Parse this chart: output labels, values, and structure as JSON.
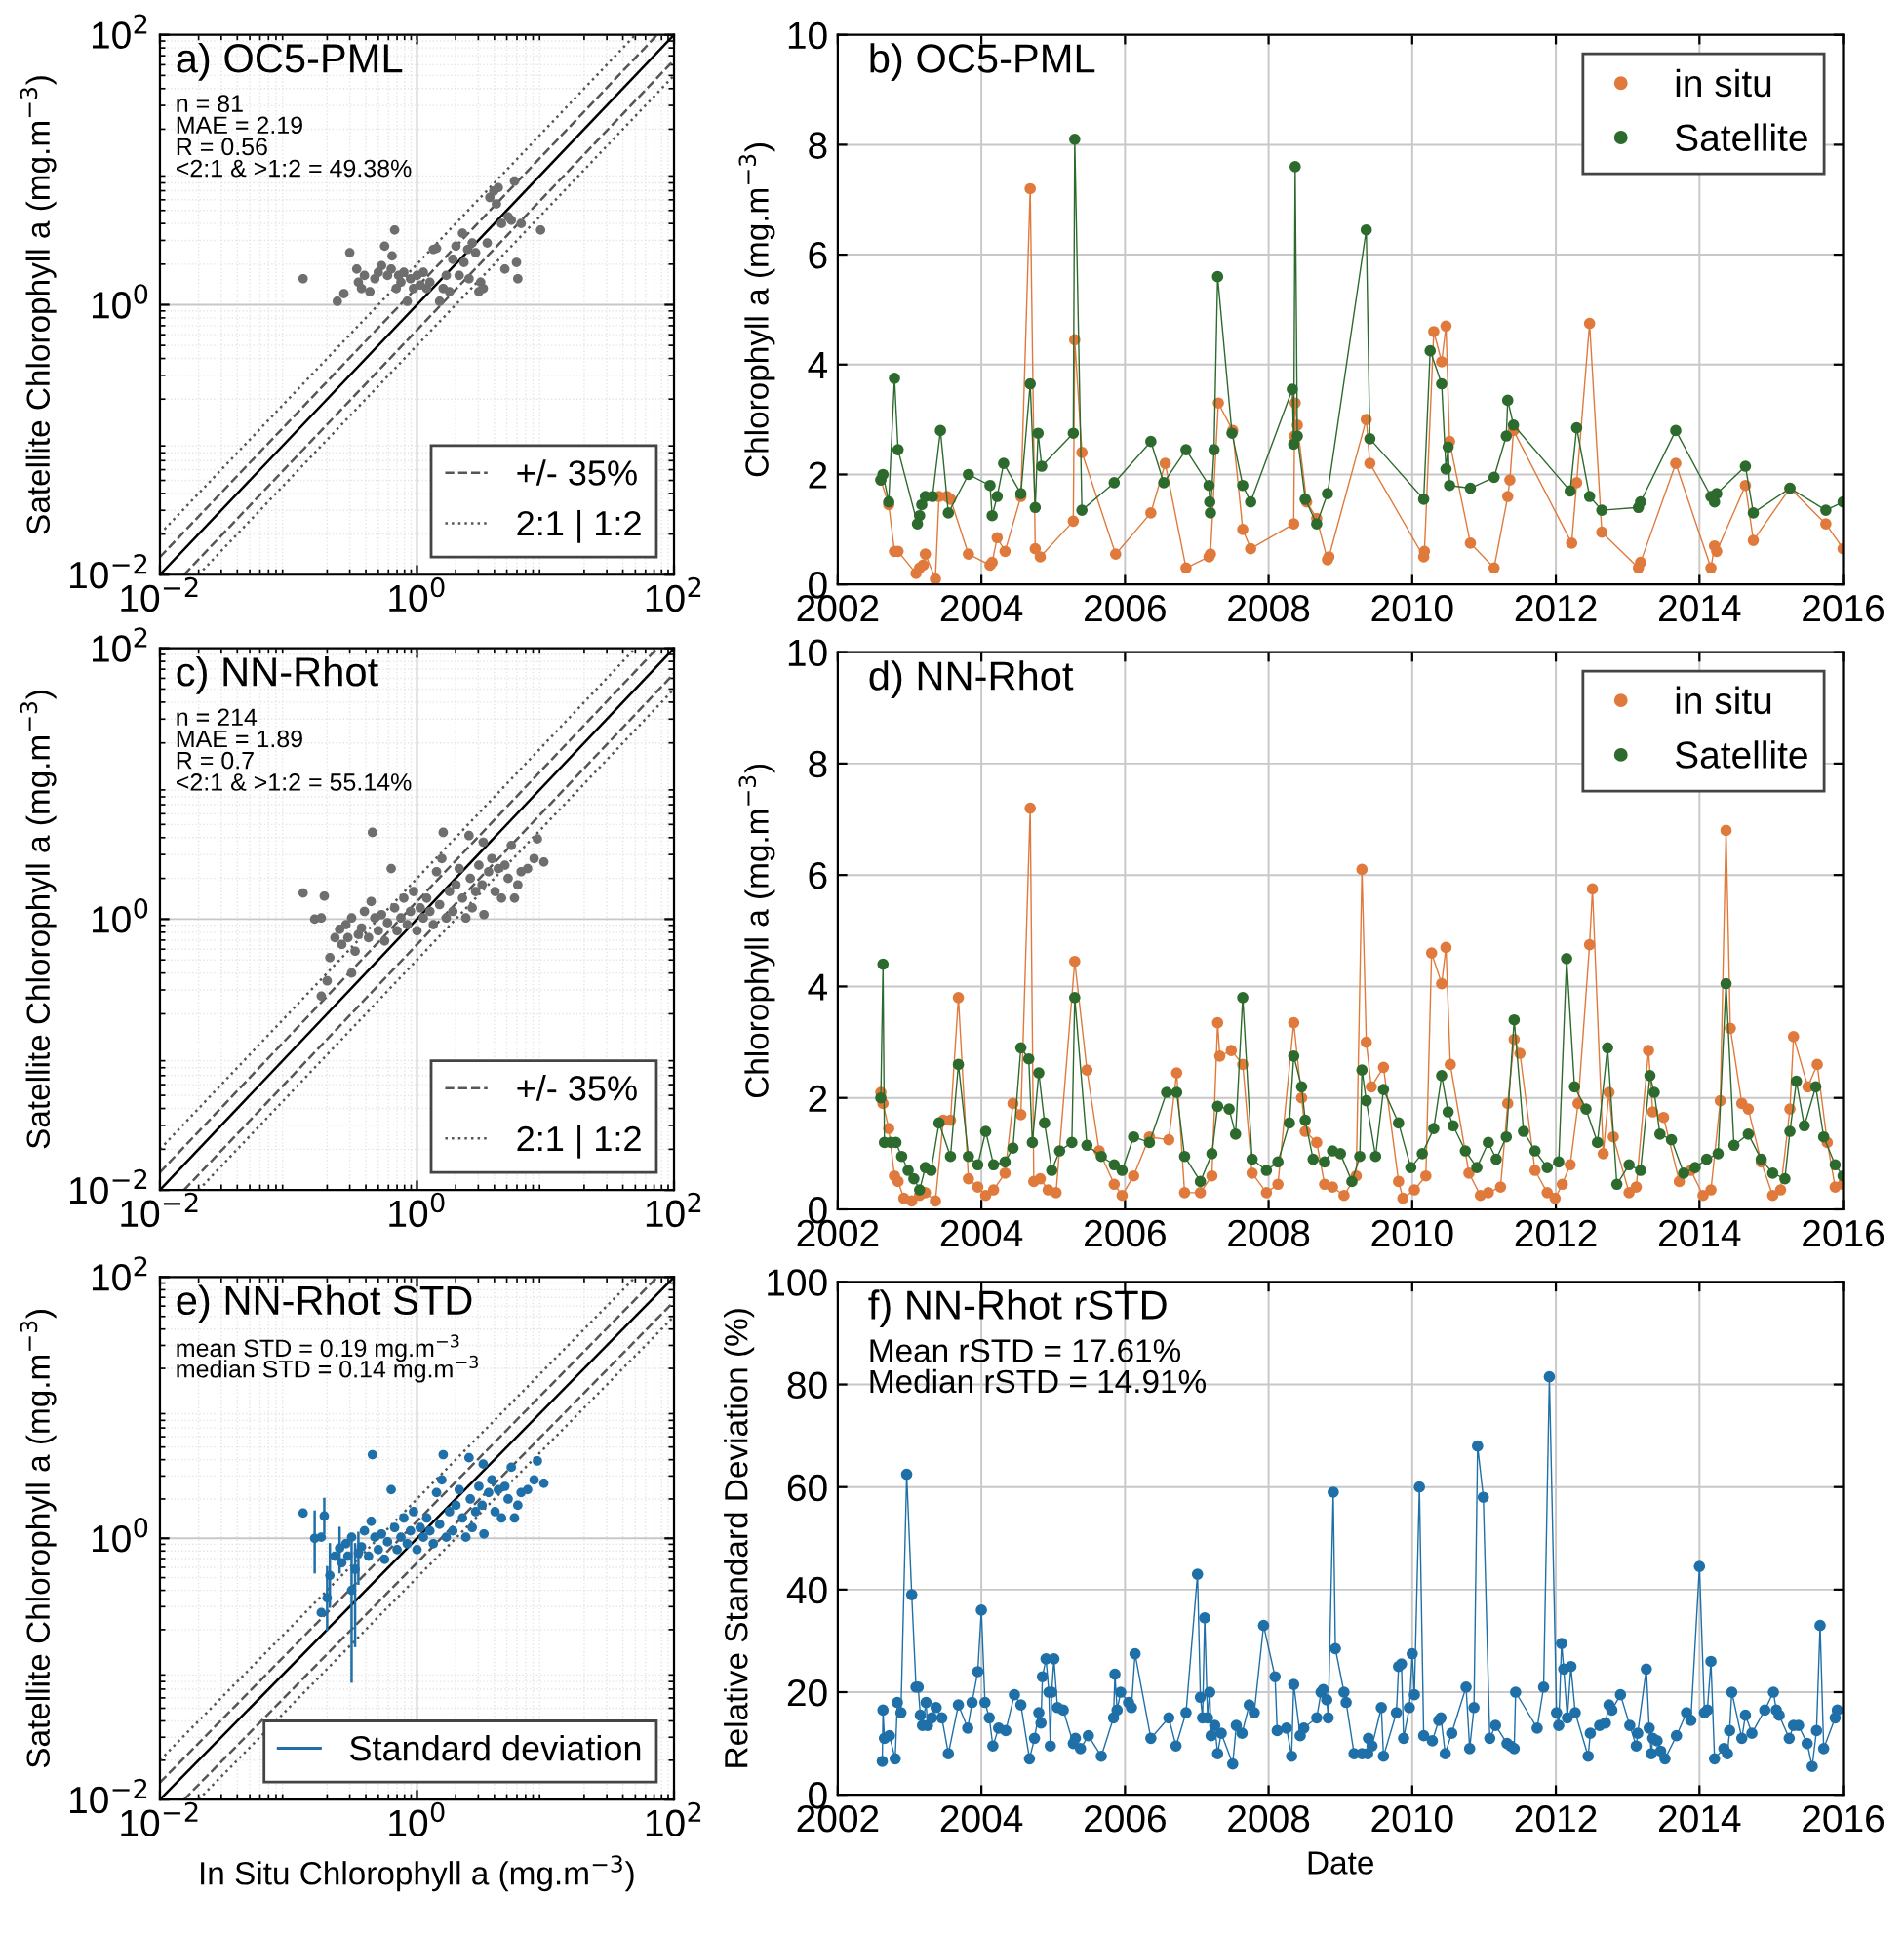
{
  "chart_data": [
    {
      "type": "scatter",
      "title": "a) OC5-PML",
      "ylabel": "Satellite Chlorophyll a (mg.m$^{−3}$)",
      "log": "xy",
      "grid": true,
      "legend": "bottom right",
      "marker": "circle",
      "xlim": [
        0.01,
        100
      ],
      "ylim": [
        0.01,
        100
      ],
      "xticks": [
        {
          "value": 0.01,
          "label": "10$^{−2}$"
        },
        {
          "value": 1,
          "label": "10$^{0}$"
        },
        {
          "value": 100,
          "label": "10$^{2}$"
        }
      ],
      "yticks": [
        {
          "value": 0.01,
          "label": "10$^{−2}$"
        },
        {
          "value": 1,
          "label": "10$^{0}$"
        },
        {
          "value": 100,
          "label": "10$^{2}$"
        }
      ],
      "annotations": [
        "n = 81",
        "MAE = 2.19",
        "R = 0.56",
        "<2:1 & >1:2 = 49.38%"
      ],
      "series": [
        {
          "type": "line",
          "marker": "none",
          "line_style": "solid",
          "color": "#000000",
          "x": [
            0.01,
            100
          ],
          "values": [
            0.01,
            100
          ]
        },
        {
          "type": "line",
          "marker": "none",
          "line_style": "dashed",
          "name": "+/- 35%",
          "color": "#555555",
          "x": [
            0.01,
            74
          ],
          "values": [
            0.0135,
            99.9
          ]
        },
        {
          "type": "line",
          "marker": "none",
          "line_style": "dashed",
          "color": "#555555",
          "x": [
            0.0154,
            100
          ],
          "values": [
            0.01,
            65
          ]
        },
        {
          "type": "line",
          "marker": "none",
          "line_style": "dotted",
          "name": "2:1 | 1:2",
          "color": "#555555",
          "x": [
            0.01,
            50
          ],
          "values": [
            0.02,
            100
          ]
        },
        {
          "type": "line",
          "marker": "none",
          "line_style": "dotted",
          "color": "#555555",
          "x": [
            0.02,
            100
          ],
          "values": [
            0.01,
            50
          ]
        },
        {
          "color": "#6e6e6e",
          "x": [
            0.13,
            0.24,
            0.27,
            0.3,
            0.34,
            0.35,
            0.37,
            0.39,
            0.43,
            0.47,
            0.5,
            0.53,
            0.56,
            0.59,
            0.63,
            0.64,
            0.67,
            0.69,
            0.72,
            0.75,
            0.79,
            0.84,
            0.89,
            0.94,
            1.0,
            1.06,
            1.12,
            1.19,
            1.26,
            1.34,
            1.42,
            1.5,
            1.6,
            1.69,
            1.79,
            1.9,
            2.01,
            2.13,
            2.26,
            2.32,
            2.48,
            2.54,
            2.69,
            2.86,
            3.03,
            3.13,
            3.28,
            3.52,
            3.69,
            3.96,
            4.15,
            4.29,
            4.55,
            4.83,
            5.12,
            5.42,
            5.74,
            5.95,
            6.09,
            6.46,
            9.16
          ],
          "values": [
            1.56,
            1.06,
            1.21,
            2.43,
            1.84,
            1.47,
            1.32,
            1.65,
            1.25,
            1.56,
            1.74,
            1.95,
            2.72,
            1.65,
            1.84,
            2.3,
            3.58,
            1.32,
            1.65,
            1.47,
            1.74,
            1.06,
            1.56,
            1.32,
            1.65,
            1.4,
            1.74,
            1.32,
            1.47,
            2.57,
            2.62,
            1.06,
            1.32,
            1.65,
            1.25,
            2.17,
            2.72,
            1.65,
            3.39,
            2.06,
            2.57,
            1.56,
            2.87,
            2.43,
            1.25,
            1.47,
            1.32,
            2.87,
            6.24,
            6.97,
            5.58,
            7.37,
            4.0,
            1.84,
            4.48,
            4.23,
            8.24,
            2.06,
            1.56,
            4.0,
            3.58
          ]
        }
      ]
    },
    {
      "type": "line",
      "title": "b) OC5-PML",
      "ylabel": "Chlorophyll a (mg.m$^{−3}$)",
      "grid": true,
      "legend": "top right",
      "marker": "circle",
      "xlim": [
        2002,
        2016
      ],
      "ylim": [
        0,
        10
      ],
      "xticks": [
        2002,
        2004,
        2006,
        2008,
        2010,
        2012,
        2014,
        2016
      ],
      "yticks": [
        0,
        2,
        4,
        6,
        8,
        10
      ],
      "series": [
        {
          "name": "in situ",
          "color": "#e07a3c",
          "x": [
            2002.6,
            2002.71,
            2002.79,
            2002.84,
            2003.09,
            2003.14,
            2003.19,
            2003.22,
            2003.36,
            2003.41,
            2003.52,
            2003.57,
            2003.82,
            2004.12,
            2004.15,
            2004.22,
            2004.33,
            2004.55,
            2004.68,
            2004.75,
            2004.82,
            2005.28,
            2005.3,
            2005.4,
            2005.87,
            2006.36,
            2006.56,
            2006.85,
            2007.17,
            2007.19,
            2007.3,
            2007.5,
            2007.64,
            2007.75,
            2008.35,
            2008.36,
            2008.37,
            2008.4,
            2008.53,
            2008.67,
            2008.82,
            2008.84,
            2009.36,
            2009.41,
            2010.16,
            2010.17,
            2010.3,
            2010.41,
            2010.47,
            2010.52,
            2010.81,
            2011.14,
            2011.33,
            2011.36,
            2011.41,
            2012.22,
            2012.29,
            2012.47,
            2012.64,
            2013.15,
            2013.18,
            2013.67,
            2014.16,
            2014.21,
            2014.24,
            2014.64,
            2014.75,
            2015.26,
            2015.76,
            2016.0
          ],
          "values": [
            1.9,
            1.45,
            0.6,
            0.6,
            0.2,
            0.3,
            0.35,
            0.55,
            0.1,
            1.6,
            1.6,
            1.55,
            0.55,
            0.35,
            0.4,
            0.85,
            0.6,
            1.6,
            7.2,
            0.65,
            0.5,
            1.15,
            4.45,
            2.4,
            0.55,
            1.3,
            2.2,
            0.3,
            0.5,
            0.55,
            3.3,
            2.8,
            1.0,
            0.65,
            1.1,
            2.7,
            3.3,
            2.9,
            1.5,
            1.2,
            0.45,
            0.5,
            3.0,
            2.2,
            0.5,
            0.6,
            4.6,
            4.05,
            4.7,
            2.6,
            0.75,
            0.3,
            1.6,
            1.9,
            2.8,
            0.75,
            1.85,
            4.75,
            0.95,
            0.3,
            0.4,
            2.2,
            0.3,
            0.7,
            0.6,
            1.8,
            0.8,
            1.75,
            1.1,
            0.65
          ]
        },
        {
          "name": "Satellite",
          "color": "#2d6a2d",
          "x": [
            2002.6,
            2002.63,
            2002.71,
            2002.79,
            2002.84,
            2003.11,
            2003.14,
            2003.17,
            2003.22,
            2003.32,
            2003.43,
            2003.54,
            2003.82,
            2004.12,
            2004.15,
            2004.22,
            2004.31,
            2004.55,
            2004.68,
            2004.75,
            2004.79,
            2004.84,
            2005.28,
            2005.3,
            2005.4,
            2005.85,
            2006.36,
            2006.54,
            2006.85,
            2007.17,
            2007.18,
            2007.19,
            2007.24,
            2007.29,
            2007.49,
            2007.64,
            2007.75,
            2008.33,
            2008.35,
            2008.37,
            2008.4,
            2008.51,
            2008.67,
            2008.82,
            2009.36,
            2009.41,
            2010.16,
            2010.25,
            2010.41,
            2010.47,
            2010.5,
            2010.52,
            2010.81,
            2011.14,
            2011.31,
            2011.33,
            2011.41,
            2012.2,
            2012.29,
            2012.47,
            2012.64,
            2013.15,
            2013.18,
            2013.67,
            2014.16,
            2014.21,
            2014.24,
            2014.64,
            2014.75,
            2015.26,
            2015.76,
            2016.0
          ],
          "values": [
            1.9,
            2.0,
            1.5,
            3.75,
            2.45,
            1.1,
            1.25,
            1.45,
            1.6,
            1.6,
            2.8,
            1.3,
            2.0,
            1.8,
            1.25,
            1.6,
            2.2,
            1.65,
            3.65,
            1.4,
            2.75,
            2.15,
            2.75,
            8.1,
            1.35,
            1.85,
            2.6,
            1.85,
            2.45,
            1.8,
            1.5,
            1.3,
            2.45,
            5.6,
            2.75,
            1.8,
            1.5,
            3.55,
            2.55,
            7.6,
            2.7,
            1.55,
            1.1,
            1.65,
            6.45,
            2.65,
            1.55,
            4.25,
            3.65,
            2.1,
            2.5,
            1.8,
            1.75,
            1.95,
            2.7,
            3.35,
            2.9,
            1.7,
            2.85,
            1.6,
            1.35,
            1.4,
            1.5,
            2.8,
            1.6,
            1.5,
            1.65,
            2.15,
            1.3,
            1.75,
            1.35,
            1.5
          ]
        }
      ]
    },
    {
      "type": "scatter",
      "title": "c) NN-Rhot",
      "ylabel": "Satellite Chlorophyll a (mg.m$^{−3}$)",
      "log": "xy",
      "grid": true,
      "legend": "bottom right",
      "marker": "circle",
      "xlim": [
        0.01,
        100
      ],
      "ylim": [
        0.01,
        100
      ],
      "xticks": [
        {
          "value": 0.01,
          "label": "10$^{−2}$"
        },
        {
          "value": 1,
          "label": "10$^{0}$"
        },
        {
          "value": 100,
          "label": "10$^{2}$"
        }
      ],
      "yticks": [
        {
          "value": 0.01,
          "label": "10$^{−2}$"
        },
        {
          "value": 1,
          "label": "10$^{0}$"
        },
        {
          "value": 100,
          "label": "10$^{2}$"
        }
      ],
      "annotations": [
        "n = 214",
        "MAE = 1.89",
        "R = 0.7",
        "<2:1 & >1:2 = 55.14%"
      ],
      "series": [
        {
          "type": "line",
          "marker": "none",
          "line_style": "solid",
          "color": "#000000",
          "x": [
            0.01,
            100
          ],
          "values": [
            0.01,
            100
          ]
        },
        {
          "type": "line",
          "marker": "none",
          "line_style": "dashed",
          "name": "+/- 35%",
          "color": "#555555",
          "x": [
            0.01,
            74
          ],
          "values": [
            0.0135,
            99.9
          ]
        },
        {
          "type": "line",
          "marker": "none",
          "line_style": "dashed",
          "color": "#555555",
          "x": [
            0.0154,
            100
          ],
          "values": [
            0.01,
            65
          ]
        },
        {
          "type": "line",
          "marker": "none",
          "line_style": "dotted",
          "name": "2:1 | 1:2",
          "color": "#555555",
          "x": [
            0.01,
            50
          ],
          "values": [
            0.02,
            100
          ]
        },
        {
          "type": "line",
          "marker": "none",
          "line_style": "dotted",
          "color": "#555555",
          "x": [
            0.02,
            100
          ],
          "values": [
            0.01,
            50
          ]
        },
        {
          "color": "#6e6e6e",
          "x": [
            0.13,
            0.16,
            0.19,
            0.18,
            0.2,
            0.18,
            0.21,
            0.23,
            0.25,
            0.26,
            0.28,
            0.29,
            0.31,
            0.31,
            0.33,
            0.35,
            0.37,
            0.39,
            0.42,
            0.44,
            0.45,
            0.47,
            0.5,
            0.53,
            0.56,
            0.59,
            0.63,
            0.67,
            0.7,
            0.75,
            0.79,
            0.84,
            0.89,
            0.94,
            1.0,
            1.06,
            1.12,
            1.19,
            1.26,
            1.34,
            1.42,
            1.5,
            1.56,
            1.6,
            1.69,
            1.79,
            1.9,
            2.01,
            2.13,
            2.26,
            2.4,
            2.54,
            2.6,
            2.69,
            2.86,
            3.03,
            3.21,
            3.28,
            3.32,
            3.61,
            3.82,
            4.05,
            4.29,
            4.55,
            4.83,
            5.12,
            5.42,
            5.74,
            6.09,
            6.46,
            7.26,
            8.15,
            8.65,
            9.71
          ],
          "values": [
            1.56,
            1.0,
            1.48,
            1.02,
            0.35,
            0.27,
            0.52,
            0.73,
            0.84,
            0.65,
            0.91,
            0.73,
            1.02,
            0.4,
            0.58,
            0.77,
            0.86,
            1.14,
            0.73,
            1.35,
            4.37,
            1.02,
            0.82,
            1.08,
            0.69,
            0.94,
            2.36,
            1.21,
            0.82,
            1.02,
            1.43,
            0.91,
            1.14,
            1.6,
            0.82,
            1.21,
            1.02,
            1.43,
            1.14,
            0.91,
            2.24,
            1.28,
            2.8,
            4.37,
            1.02,
            1.6,
            1.14,
            1.79,
            2.36,
            1.43,
            1.02,
            4.14,
            2.0,
            1.21,
            1.6,
            2.5,
            1.79,
            3.7,
            1.08,
            2.24,
            2.8,
            1.6,
            2.36,
            1.43,
            2.5,
            2.0,
            3.5,
            1.43,
            1.79,
            2.24,
            2.36,
            2.8,
            3.91,
            2.64
          ]
        }
      ]
    },
    {
      "type": "line",
      "title": "d) NN-Rhot",
      "ylabel": "Chlorophyll a (mg.m$^{−3}$)",
      "grid": true,
      "legend": "top right",
      "marker": "circle",
      "xlim": [
        2002,
        2016
      ],
      "ylim": [
        0,
        10
      ],
      "xticks": [
        2002,
        2004,
        2006,
        2008,
        2010,
        2012,
        2014,
        2016
      ],
      "yticks": [
        0,
        2,
        4,
        6,
        8,
        10
      ],
      "series": [
        {
          "name": "in situ",
          "color": "#e07a3c",
          "x": [
            2002.6,
            2002.63,
            2002.71,
            2002.79,
            2002.84,
            2002.92,
            2003.03,
            2003.14,
            2003.22,
            2003.36,
            2003.47,
            2003.57,
            2003.68,
            2003.82,
            2003.95,
            2004.06,
            2004.17,
            2004.33,
            2004.44,
            2004.55,
            2004.68,
            2004.73,
            2004.82,
            2004.93,
            2005.04,
            2005.3,
            2005.47,
            2005.64,
            2005.85,
            2005.96,
            2006.12,
            2006.34,
            2006.61,
            2006.72,
            2006.83,
            2007.05,
            2007.21,
            2007.29,
            2007.32,
            2007.48,
            2007.64,
            2007.77,
            2007.97,
            2008.13,
            2008.35,
            2008.46,
            2008.51,
            2008.67,
            2008.78,
            2008.89,
            2009.05,
            2009.22,
            2009.3,
            2009.36,
            2009.43,
            2009.6,
            2009.81,
            2009.87,
            2010.03,
            2010.19,
            2010.27,
            2010.41,
            2010.47,
            2010.53,
            2010.79,
            2010.95,
            2011.06,
            2011.23,
            2011.33,
            2011.42,
            2011.5,
            2011.71,
            2011.88,
            2011.99,
            2012.09,
            2012.2,
            2012.31,
            2012.47,
            2012.51,
            2012.66,
            2012.74,
            2012.8,
            2013.02,
            2013.12,
            2013.29,
            2013.35,
            2013.5,
            2013.72,
            2013.88,
            2014.05,
            2014.16,
            2014.29,
            2014.37,
            2014.43,
            2014.59,
            2014.68,
            2014.86,
            2015.02,
            2015.13,
            2015.26,
            2015.31,
            2015.51,
            2015.64,
            2015.78,
            2015.89,
            2016.0
          ],
          "values": [
            2.1,
            1.9,
            1.45,
            0.6,
            0.5,
            0.2,
            0.15,
            0.25,
            0.3,
            0.15,
            1.6,
            1.6,
            3.8,
            0.55,
            0.4,
            0.25,
            0.35,
            0.65,
            1.9,
            1.7,
            7.2,
            0.5,
            0.55,
            0.35,
            0.3,
            4.45,
            2.5,
            1.05,
            0.45,
            0.25,
            0.6,
            1.3,
            1.25,
            2.45,
            0.3,
            0.3,
            0.6,
            3.35,
            2.75,
            2.85,
            2.6,
            0.65,
            0.3,
            0.45,
            3.35,
            2.0,
            1.4,
            1.2,
            0.45,
            0.4,
            0.25,
            0.6,
            6.1,
            3.0,
            2.2,
            2.55,
            0.5,
            0.2,
            0.35,
            0.6,
            4.6,
            4.05,
            4.7,
            2.6,
            0.65,
            0.25,
            0.3,
            0.4,
            1.9,
            3.05,
            2.8,
            0.7,
            0.3,
            0.2,
            0.45,
            0.8,
            1.9,
            4.75,
            5.75,
            1.0,
            2.1,
            1.3,
            0.3,
            0.4,
            2.85,
            1.75,
            1.65,
            0.5,
            0.7,
            0.25,
            0.35,
            1.95,
            6.8,
            3.25,
            1.9,
            1.8,
            0.85,
            0.25,
            0.35,
            1.8,
            3.1,
            2.2,
            2.6,
            1.2,
            0.4,
            0.45
          ]
        },
        {
          "name": "Satellite",
          "color": "#2d6a2d",
          "x": [
            2002.6,
            2002.63,
            2002.65,
            2002.74,
            2002.81,
            2002.89,
            2002.98,
            2003.06,
            2003.14,
            2003.22,
            2003.3,
            2003.41,
            2003.57,
            2003.68,
            2003.82,
            2003.95,
            2004.06,
            2004.17,
            2004.33,
            2004.44,
            2004.55,
            2004.66,
            2004.71,
            2004.8,
            2004.88,
            2004.98,
            2005.09,
            2005.26,
            2005.3,
            2005.47,
            2005.67,
            2005.85,
            2005.96,
            2006.12,
            2006.34,
            2006.58,
            2006.72,
            2006.83,
            2007.05,
            2007.21,
            2007.29,
            2007.45,
            2007.54,
            2007.64,
            2007.77,
            2007.97,
            2008.13,
            2008.29,
            2008.35,
            2008.46,
            2008.51,
            2008.62,
            2008.78,
            2008.89,
            2009.0,
            2009.16,
            2009.27,
            2009.3,
            2009.36,
            2009.49,
            2009.6,
            2009.81,
            2009.98,
            2010.14,
            2010.3,
            2010.41,
            2010.5,
            2010.57,
            2010.74,
            2010.9,
            2011.06,
            2011.17,
            2011.31,
            2011.42,
            2011.55,
            2011.71,
            2011.88,
            2012.04,
            2012.15,
            2012.26,
            2012.42,
            2012.58,
            2012.72,
            2012.85,
            2013.02,
            2013.18,
            2013.31,
            2013.37,
            2013.45,
            2013.61,
            2013.78,
            2013.94,
            2014.1,
            2014.26,
            2014.37,
            2014.48,
            2014.68,
            2014.86,
            2015.02,
            2015.19,
            2015.26,
            2015.35,
            2015.46,
            2015.62,
            2015.73,
            2015.89,
            2016.0
          ],
          "values": [
            2.0,
            4.4,
            1.2,
            1.2,
            1.2,
            0.95,
            0.7,
            0.55,
            0.35,
            0.75,
            0.7,
            1.55,
            0.95,
            2.6,
            0.95,
            0.8,
            1.4,
            0.8,
            0.85,
            1.1,
            2.9,
            2.7,
            1.2,
            2.45,
            1.55,
            0.7,
            1.05,
            1.2,
            3.8,
            1.15,
            0.95,
            0.8,
            0.7,
            1.3,
            1.2,
            2.1,
            2.1,
            0.95,
            0.5,
            1.0,
            1.85,
            1.8,
            1.35,
            3.8,
            0.9,
            0.7,
            0.85,
            1.55,
            2.75,
            2.2,
            1.6,
            0.9,
            0.85,
            1.05,
            1.0,
            0.5,
            0.95,
            2.5,
            1.95,
            0.95,
            2.15,
            1.55,
            0.75,
            1.0,
            1.45,
            2.4,
            1.75,
            1.5,
            1.05,
            0.75,
            1.2,
            0.9,
            1.3,
            3.4,
            1.4,
            1.05,
            0.75,
            0.85,
            4.5,
            2.2,
            1.8,
            1.2,
            2.9,
            0.45,
            0.8,
            0.7,
            2.4,
            2.1,
            1.35,
            1.25,
            0.65,
            0.75,
            0.9,
            1.0,
            4.05,
            1.15,
            1.35,
            0.9,
            0.65,
            0.55,
            1.4,
            2.3,
            1.5,
            2.2,
            1.3,
            0.8,
            0.6
          ]
        }
      ]
    },
    {
      "type": "scatter",
      "title": "e) NN-Rhot STD",
      "ylabel": "Satellite Chlorophyll a (mg.m$^{−3}$)",
      "xlabel": "In Situ Chlorophyll a (mg.m$^{−3}$)",
      "log": "xy",
      "grid": true,
      "legend": "bottom right",
      "marker": "circle",
      "xlim": [
        0.01,
        100
      ],
      "ylim": [
        0.01,
        100
      ],
      "xticks": [
        {
          "value": 0.01,
          "label": "10$^{−2}$"
        },
        {
          "value": 1,
          "label": "10$^{0}$"
        },
        {
          "value": 100,
          "label": "10$^{2}$"
        }
      ],
      "yticks": [
        {
          "value": 0.01,
          "label": "10$^{−2}$"
        },
        {
          "value": 1,
          "label": "10$^{0}$"
        },
        {
          "value": 100,
          "label": "10$^{2}$"
        }
      ],
      "annotations": [
        "mean STD = 0.19 mg.m$^{−3}$",
        "median STD = 0.14 mg.m$^{−3}$"
      ],
      "series": [
        {
          "type": "line",
          "marker": "none",
          "line_style": "solid",
          "color": "#000000",
          "x": [
            0.01,
            100
          ],
          "values": [
            0.01,
            100
          ]
        },
        {
          "type": "line",
          "marker": "none",
          "line_style": "dashed",
          "color": "#555555",
          "x": [
            0.01,
            74
          ],
          "values": [
            0.0135,
            99.9
          ]
        },
        {
          "type": "line",
          "marker": "none",
          "line_style": "dashed",
          "color": "#555555",
          "x": [
            0.0154,
            100
          ],
          "values": [
            0.01,
            65
          ]
        },
        {
          "type": "line",
          "marker": "none",
          "line_style": "dotted",
          "color": "#555555",
          "x": [
            0.01,
            50
          ],
          "values": [
            0.02,
            100
          ]
        },
        {
          "type": "line",
          "marker": "none",
          "line_style": "dotted",
          "color": "#555555",
          "x": [
            0.02,
            100
          ],
          "values": [
            0.01,
            50
          ]
        },
        {
          "name": "Standard deviation",
          "color": "#1f6fa8",
          "x": [
            0.16,
            0.19,
            0.2,
            0.21,
            0.25,
            0.31,
            0.33,
            0.35
          ],
          "values": [
            1.0,
            1.48,
            0.35,
            0.52,
            0.84,
            0.4,
            0.58,
            0.77
          ],
          "errors": [
            [
              0.55,
              1.6
            ],
            [
              1.1,
              2.0
            ],
            [
              0.2,
              0.6
            ],
            [
              0.3,
              0.9
            ],
            [
              0.55,
              1.2
            ],
            [
              0.08,
              1.0
            ],
            [
              0.15,
              0.9
            ],
            [
              0.45,
              1.1
            ]
          ]
        },
        {
          "color": "#1f6fa8",
          "x": [
            0.13,
            0.18,
            0.18,
            0.23,
            0.26,
            0.28,
            0.29,
            0.31,
            0.37,
            0.39,
            0.42,
            0.44,
            0.45,
            0.47,
            0.5,
            0.53,
            0.56,
            0.59,
            0.63,
            0.67,
            0.7,
            0.75,
            0.79,
            0.84,
            0.89,
            0.94,
            1.0,
            1.06,
            1.12,
            1.19,
            1.26,
            1.34,
            1.42,
            1.5,
            1.56,
            1.6,
            1.69,
            1.79,
            1.9,
            2.01,
            2.13,
            2.26,
            2.4,
            2.54,
            2.6,
            2.69,
            2.86,
            3.03,
            3.21,
            3.28,
            3.32,
            3.61,
            3.82,
            4.05,
            4.29,
            4.55,
            4.83,
            5.12,
            5.42,
            5.74,
            6.09,
            6.46,
            7.26,
            8.15,
            8.65,
            9.71
          ],
          "values": [
            1.56,
            1.02,
            0.27,
            0.73,
            0.65,
            0.91,
            0.73,
            1.02,
            0.86,
            1.14,
            0.73,
            1.35,
            4.37,
            1.02,
            0.82,
            1.08,
            0.69,
            0.94,
            2.36,
            1.21,
            0.82,
            1.02,
            1.43,
            0.91,
            1.14,
            1.6,
            0.82,
            1.21,
            1.02,
            1.43,
            1.14,
            0.91,
            2.24,
            1.28,
            2.8,
            4.37,
            1.02,
            1.6,
            1.14,
            1.79,
            2.36,
            1.43,
            1.02,
            4.14,
            2.0,
            1.21,
            1.6,
            2.5,
            1.79,
            3.7,
            1.08,
            2.24,
            2.8,
            1.6,
            2.36,
            1.43,
            2.5,
            2.0,
            3.5,
            1.43,
            1.79,
            2.24,
            2.36,
            2.8,
            3.91,
            2.64
          ]
        }
      ]
    },
    {
      "type": "line",
      "title": "f) NN-Rhot rSTD",
      "ylabel": "Relative Standard Deviation (%)",
      "xlabel": "Date",
      "grid": true,
      "marker": "circle",
      "xlim": [
        2002,
        2016
      ],
      "ylim": [
        0,
        100
      ],
      "xticks": [
        2002,
        2004,
        2006,
        2008,
        2010,
        2012,
        2014,
        2016
      ],
      "yticks": [
        0,
        20,
        40,
        60,
        80,
        100
      ],
      "annotations": [
        "Mean rSTD = 17.61%",
        "Median rSTD = 14.91%"
      ],
      "series": [
        {
          "color": "#1f6fa8",
          "x": [
            2002.62,
            2002.63,
            2002.65,
            2002.72,
            2002.8,
            2002.83,
            2002.88,
            2002.96,
            2003.03,
            2003.09,
            2003.12,
            2003.15,
            2003.18,
            2003.23,
            2003.25,
            2003.31,
            2003.37,
            2003.45,
            2003.54,
            2003.68,
            2003.81,
            2003.87,
            2003.95,
            2004.0,
            2004.05,
            2004.11,
            2004.16,
            2004.24,
            2004.34,
            2004.46,
            2004.55,
            2004.67,
            2004.74,
            2004.8,
            2004.83,
            2004.85,
            2004.9,
            2004.94,
            2004.96,
            2004.98,
            2005.01,
            2005.06,
            2005.14,
            2005.28,
            2005.31,
            2005.38,
            2005.49,
            2005.67,
            2005.84,
            2005.86,
            2005.89,
            2005.94,
            2006.05,
            2006.09,
            2006.14,
            2006.36,
            2006.61,
            2006.71,
            2006.85,
            2007.01,
            2007.05,
            2007.08,
            2007.11,
            2007.15,
            2007.18,
            2007.2,
            2007.25,
            2007.29,
            2007.34,
            2007.5,
            2007.55,
            2007.63,
            2007.73,
            2007.8,
            2007.93,
            2008.09,
            2008.12,
            2008.25,
            2008.32,
            2008.35,
            2008.44,
            2008.49,
            2008.67,
            2008.73,
            2008.76,
            2008.81,
            2008.83,
            2008.9,
            2008.93,
            2009.05,
            2009.08,
            2009.19,
            2009.3,
            2009.38,
            2009.39,
            2009.44,
            2009.57,
            2009.6,
            2009.78,
            2009.81,
            2009.85,
            2009.88,
            2009.96,
            2010.0,
            2010.03,
            2010.1,
            2010.16,
            2010.28,
            2010.37,
            2010.4,
            2010.46,
            2010.55,
            2010.75,
            2010.8,
            2010.86,
            2010.91,
            2010.99,
            2011.08,
            2011.16,
            2011.32,
            2011.37,
            2011.42,
            2011.44,
            2011.74,
            2011.83,
            2011.91,
            2012.01,
            2012.04,
            2012.08,
            2012.11,
            2012.16,
            2012.21,
            2012.27,
            2012.45,
            2012.48,
            2012.61,
            2012.69,
            2012.74,
            2012.78,
            2012.9,
            2013.03,
            2013.12,
            2013.14,
            2013.26,
            2013.3,
            2013.33,
            2013.35,
            2013.41,
            2013.46,
            2013.52,
            2013.68,
            2013.82,
            2013.88,
            2014.0,
            2014.07,
            2014.11,
            2014.16,
            2014.21,
            2014.34,
            2014.39,
            2014.42,
            2014.45,
            2014.59,
            2014.64,
            2014.73,
            2014.91,
            2015.03,
            2015.07,
            2015.11,
            2015.25,
            2015.31,
            2015.38,
            2015.5,
            2015.57,
            2015.63,
            2015.68,
            2015.73,
            2015.89,
            2015.92
          ],
          "values": [
            6.5,
            16.5,
            11,
            11.5,
            7,
            18,
            16,
            62.5,
            39,
            21,
            21,
            15.5,
            13.5,
            18,
            13.5,
            15,
            17,
            15,
            8,
            17.5,
            13,
            18,
            24,
            36,
            18,
            15,
            9.5,
            13,
            12.5,
            19.5,
            17.5,
            7,
            11,
            16,
            14,
            23,
            26.5,
            20,
            9.5,
            20,
            26.5,
            17,
            16.5,
            10,
            11,
            9,
            11.5,
            7.5,
            15,
            23.5,
            16.5,
            20,
            18,
            17,
            27.5,
            11,
            15,
            9.5,
            16,
            43,
            19,
            15,
            34.5,
            15,
            20,
            11.5,
            13.5,
            8,
            12,
            6,
            13.5,
            12,
            17.5,
            16,
            33,
            23,
            12.5,
            13,
            7.5,
            21.5,
            11.5,
            13,
            15,
            20,
            20.5,
            18.5,
            15,
            59,
            28.5,
            20,
            18,
            8,
            8,
            8,
            11,
            9.5,
            17,
            7.5,
            16,
            25,
            25.5,
            11,
            17,
            27.5,
            19.5,
            60,
            11.5,
            10.5,
            14.5,
            15,
            8,
            12,
            21,
            9,
            17,
            68,
            58,
            11,
            13.5,
            10,
            9.5,
            9,
            20,
            13,
            21,
            81.5,
            16,
            13.5,
            29.5,
            24.5,
            15,
            25,
            16,
            7.5,
            12,
            13.5,
            14,
            17.5,
            16.5,
            19.5,
            13.5,
            9.5,
            12,
            24.5,
            13,
            8,
            11,
            10.5,
            8.5,
            7,
            11.5,
            16,
            14.5,
            44.5,
            16,
            16.5,
            26,
            7,
            9,
            8,
            12.5,
            20,
            11,
            15.5,
            12,
            16.5,
            20,
            16.5,
            15.5,
            11,
            13.5,
            13.5,
            10,
            5.5,
            12.5,
            33,
            9,
            15,
            16.5
          ]
        }
      ]
    }
  ]
}
